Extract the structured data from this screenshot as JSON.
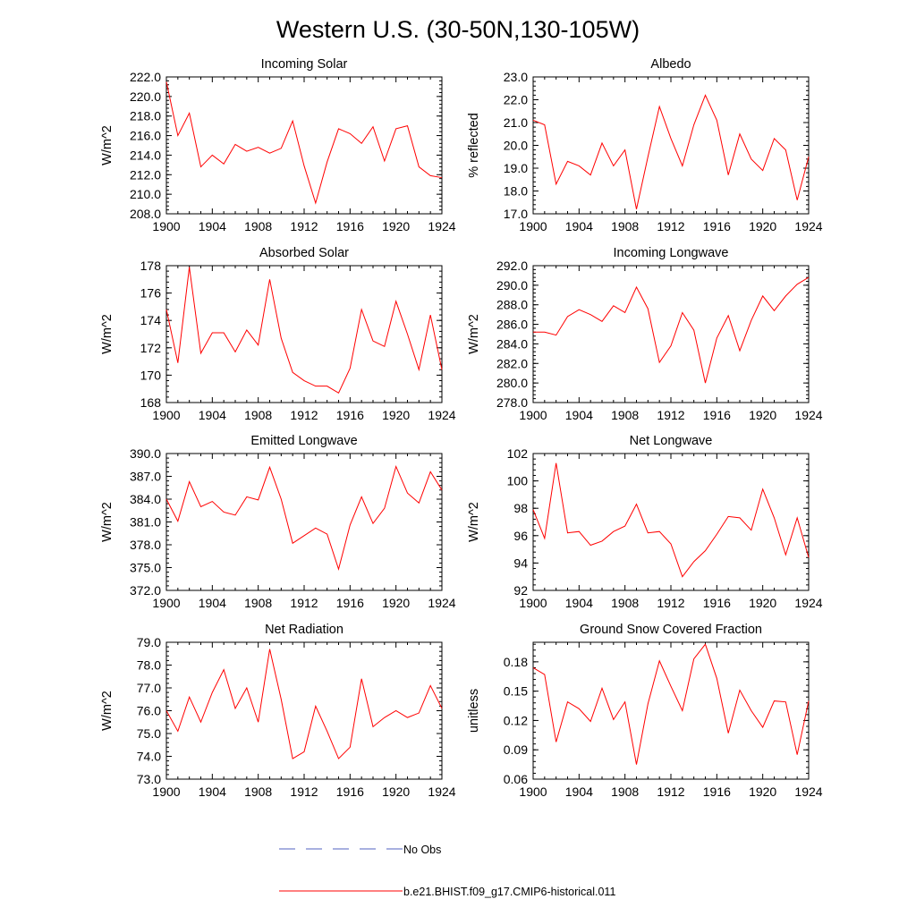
{
  "title": "Western U.S. (30-50N,130-105W)",
  "colors": {
    "model": "#ff0000",
    "obs": "#5060c0",
    "axis": "#000000"
  },
  "legend": [
    {
      "label": "No Obs",
      "style": "dashed",
      "color": "#5060c0"
    },
    {
      "label": "b.e21.BHIST.f09_g17.CMIP6-historical.011",
      "style": "solid",
      "color": "#ff0000"
    }
  ],
  "chart_data": [
    {
      "type": "line",
      "title": "Incoming Solar",
      "ylabel": "W/m^2",
      "xlim": [
        1900,
        1924
      ],
      "ylim": [
        208,
        222
      ],
      "yticks": [
        "208.0",
        "210.0",
        "212.0",
        "214.0",
        "216.0",
        "218.0",
        "220.0",
        "222.0"
      ],
      "ytick_values": [
        208,
        210,
        212,
        214,
        216,
        218,
        220,
        222
      ],
      "xticks": [
        "1900",
        "1904",
        "1908",
        "1912",
        "1916",
        "1920",
        "1924"
      ],
      "xtick_values": [
        1900,
        1904,
        1908,
        1912,
        1916,
        1920,
        1924
      ],
      "series": [
        {
          "x": [
            1900,
            1901,
            1902,
            1903,
            1904,
            1905,
            1906,
            1907,
            1908,
            1909,
            1910,
            1911,
            1912,
            1913,
            1914,
            1915,
            1916,
            1917,
            1918,
            1919,
            1920,
            1921,
            1922,
            1923,
            1924
          ],
          "values": [
            221.5,
            216.0,
            218.3,
            212.8,
            214.0,
            213.1,
            215.1,
            214.4,
            214.8,
            214.2,
            214.7,
            217.5,
            212.9,
            209.1,
            213.3,
            216.7,
            216.2,
            215.2,
            216.9,
            213.4,
            216.7,
            217.0,
            212.8,
            211.9,
            211.7
          ]
        }
      ]
    },
    {
      "type": "line",
      "title": "Albedo",
      "ylabel": "% reflected",
      "xlim": [
        1900,
        1924
      ],
      "ylim": [
        17,
        23
      ],
      "yticks": [
        "17.0",
        "18.0",
        "19.0",
        "20.0",
        "21.0",
        "22.0",
        "23.0"
      ],
      "ytick_values": [
        17,
        18,
        19,
        20,
        21,
        22,
        23
      ],
      "xticks": [
        "1900",
        "1904",
        "1908",
        "1912",
        "1916",
        "1920",
        "1924"
      ],
      "xtick_values": [
        1900,
        1904,
        1908,
        1912,
        1916,
        1920,
        1924
      ],
      "series": [
        {
          "x": [
            1900,
            1901,
            1902,
            1903,
            1904,
            1905,
            1906,
            1907,
            1908,
            1909,
            1910,
            1911,
            1912,
            1913,
            1914,
            1915,
            1916,
            1917,
            1918,
            1919,
            1920,
            1921,
            1922,
            1923,
            1924
          ],
          "values": [
            21.1,
            20.9,
            18.3,
            19.3,
            19.1,
            18.7,
            20.1,
            19.1,
            19.8,
            17.2,
            19.5,
            21.7,
            20.3,
            19.1,
            20.9,
            22.2,
            21.1,
            18.7,
            20.5,
            19.4,
            18.9,
            20.3,
            19.8,
            17.6,
            19.5
          ]
        }
      ]
    },
    {
      "type": "line",
      "title": "Absorbed Solar",
      "ylabel": "W/m^2",
      "xlim": [
        1900,
        1924
      ],
      "ylim": [
        168,
        178
      ],
      "yticks": [
        "168",
        "170",
        "172",
        "174",
        "176",
        "178"
      ],
      "ytick_values": [
        168,
        170,
        172,
        174,
        176,
        178
      ],
      "xticks": [
        "1900",
        "1904",
        "1908",
        "1912",
        "1916",
        "1920",
        "1924"
      ],
      "xtick_values": [
        1900,
        1904,
        1908,
        1912,
        1916,
        1920,
        1924
      ],
      "series": [
        {
          "x": [
            1900,
            1901,
            1902,
            1903,
            1904,
            1905,
            1906,
            1907,
            1908,
            1909,
            1910,
            1911,
            1912,
            1913,
            1914,
            1915,
            1916,
            1917,
            1918,
            1919,
            1920,
            1921,
            1922,
            1923,
            1924
          ],
          "values": [
            174.8,
            170.9,
            177.9,
            171.6,
            173.1,
            173.1,
            171.7,
            173.3,
            172.2,
            177.0,
            172.7,
            170.2,
            169.6,
            169.2,
            169.2,
            168.7,
            170.5,
            174.8,
            172.5,
            172.1,
            175.4,
            173.0,
            170.4,
            174.4,
            170.4
          ]
        }
      ]
    },
    {
      "type": "line",
      "title": "Incoming Longwave",
      "ylabel": "W/m^2",
      "xlim": [
        1900,
        1924
      ],
      "ylim": [
        278,
        292
      ],
      "yticks": [
        "278.0",
        "280.0",
        "282.0",
        "284.0",
        "286.0",
        "288.0",
        "290.0",
        "292.0"
      ],
      "ytick_values": [
        278,
        280,
        282,
        284,
        286,
        288,
        290,
        292
      ],
      "xticks": [
        "1900",
        "1904",
        "1908",
        "1912",
        "1916",
        "1920",
        "1924"
      ],
      "xtick_values": [
        1900,
        1904,
        1908,
        1912,
        1916,
        1920,
        1924
      ],
      "series": [
        {
          "x": [
            1900,
            1901,
            1902,
            1903,
            1904,
            1905,
            1906,
            1907,
            1908,
            1909,
            1910,
            1911,
            1912,
            1913,
            1914,
            1915,
            1916,
            1917,
            1918,
            1919,
            1920,
            1921,
            1922,
            1923,
            1924
          ],
          "values": [
            285.2,
            285.2,
            284.9,
            286.8,
            287.5,
            287.0,
            286.3,
            287.9,
            287.2,
            289.8,
            287.6,
            282.1,
            283.8,
            287.2,
            285.4,
            280.0,
            284.6,
            286.9,
            283.3,
            286.4,
            288.9,
            287.4,
            288.9,
            290.1,
            290.8
          ]
        }
      ]
    },
    {
      "type": "line",
      "title": "Emitted Longwave",
      "ylabel": "W/m^2",
      "xlim": [
        1900,
        1924
      ],
      "ylim": [
        372,
        390
      ],
      "yticks": [
        "372.0",
        "375.0",
        "378.0",
        "381.0",
        "384.0",
        "387.0",
        "390.0"
      ],
      "ytick_values": [
        372,
        375,
        378,
        381,
        384,
        387,
        390
      ],
      "xticks": [
        "1900",
        "1904",
        "1908",
        "1912",
        "1916",
        "1920",
        "1924"
      ],
      "xtick_values": [
        1900,
        1904,
        1908,
        1912,
        1916,
        1920,
        1924
      ],
      "series": [
        {
          "x": [
            1900,
            1901,
            1902,
            1903,
            1904,
            1905,
            1906,
            1907,
            1908,
            1909,
            1910,
            1911,
            1912,
            1913,
            1914,
            1915,
            1916,
            1917,
            1918,
            1919,
            1920,
            1921,
            1922,
            1923,
            1924
          ],
          "values": [
            384.0,
            381.1,
            386.3,
            383.0,
            383.7,
            382.3,
            381.9,
            384.3,
            383.9,
            388.2,
            384.0,
            378.2,
            379.2,
            380.2,
            379.4,
            374.8,
            380.6,
            384.3,
            380.8,
            382.8,
            388.3,
            384.8,
            383.5,
            387.6,
            385.2
          ]
        }
      ]
    },
    {
      "type": "line",
      "title": "Net Longwave",
      "ylabel": "W/m^2",
      "xlim": [
        1900,
        1924
      ],
      "ylim": [
        92,
        102
      ],
      "yticks": [
        "92",
        "94",
        "96",
        "98",
        "100",
        "102"
      ],
      "ytick_values": [
        92,
        94,
        96,
        98,
        100,
        102
      ],
      "xticks": [
        "1900",
        "1904",
        "1908",
        "1912",
        "1916",
        "1920",
        "1924"
      ],
      "xtick_values": [
        1900,
        1904,
        1908,
        1912,
        1916,
        1920,
        1924
      ],
      "series": [
        {
          "x": [
            1900,
            1901,
            1902,
            1903,
            1904,
            1905,
            1906,
            1907,
            1908,
            1909,
            1910,
            1911,
            1912,
            1913,
            1914,
            1915,
            1916,
            1917,
            1918,
            1919,
            1920,
            1921,
            1922,
            1923,
            1924
          ],
          "values": [
            97.9,
            95.8,
            101.3,
            96.2,
            96.3,
            95.3,
            95.6,
            96.3,
            96.7,
            98.3,
            96.2,
            96.3,
            95.4,
            93.0,
            94.1,
            94.9,
            96.1,
            97.4,
            97.3,
            96.4,
            99.4,
            97.3,
            94.6,
            97.3,
            94.4
          ]
        }
      ]
    },
    {
      "type": "line",
      "title": "Net Radiation",
      "ylabel": "W/m^2",
      "xlim": [
        1900,
        1924
      ],
      "ylim": [
        73,
        79
      ],
      "yticks": [
        "73.0",
        "74.0",
        "75.0",
        "76.0",
        "77.0",
        "78.0",
        "79.0"
      ],
      "ytick_values": [
        73,
        74,
        75,
        76,
        77,
        78,
        79
      ],
      "xticks": [
        "1900",
        "1904",
        "1908",
        "1912",
        "1916",
        "1920",
        "1924"
      ],
      "xtick_values": [
        1900,
        1904,
        1908,
        1912,
        1916,
        1920,
        1924
      ],
      "series": [
        {
          "x": [
            1900,
            1901,
            1902,
            1903,
            1904,
            1905,
            1906,
            1907,
            1908,
            1909,
            1910,
            1911,
            1912,
            1913,
            1914,
            1915,
            1916,
            1917,
            1918,
            1919,
            1920,
            1921,
            1922,
            1923,
            1924
          ],
          "values": [
            76.0,
            75.1,
            76.6,
            75.5,
            76.8,
            77.8,
            76.1,
            77.0,
            75.5,
            78.7,
            76.5,
            73.9,
            74.2,
            76.2,
            75.1,
            73.9,
            74.4,
            77.4,
            75.3,
            75.7,
            76.0,
            75.7,
            75.9,
            77.1,
            76.1
          ]
        }
      ]
    },
    {
      "type": "line",
      "title": "Ground Snow Covered Fraction",
      "ylabel": "unitless",
      "xlim": [
        1900,
        1924
      ],
      "ylim": [
        0.06,
        0.2
      ],
      "yticks": [
        "0.06",
        "0.09",
        "0.12",
        "0.15",
        "0.18"
      ],
      "ytick_values": [
        0.06,
        0.09,
        0.12,
        0.15,
        0.18
      ],
      "xticks": [
        "1900",
        "1904",
        "1908",
        "1912",
        "1916",
        "1920",
        "1924"
      ],
      "xtick_values": [
        1900,
        1904,
        1908,
        1912,
        1916,
        1920,
        1924
      ],
      "series": [
        {
          "x": [
            1900,
            1901,
            1902,
            1903,
            1904,
            1905,
            1906,
            1907,
            1908,
            1909,
            1910,
            1911,
            1912,
            1913,
            1914,
            1915,
            1916,
            1917,
            1918,
            1919,
            1920,
            1921,
            1922,
            1923,
            1924
          ],
          "values": [
            0.174,
            0.167,
            0.098,
            0.139,
            0.132,
            0.119,
            0.153,
            0.121,
            0.139,
            0.075,
            0.137,
            0.181,
            0.155,
            0.13,
            0.183,
            0.198,
            0.163,
            0.107,
            0.151,
            0.13,
            0.113,
            0.14,
            0.139,
            0.085,
            0.14
          ]
        }
      ]
    }
  ]
}
